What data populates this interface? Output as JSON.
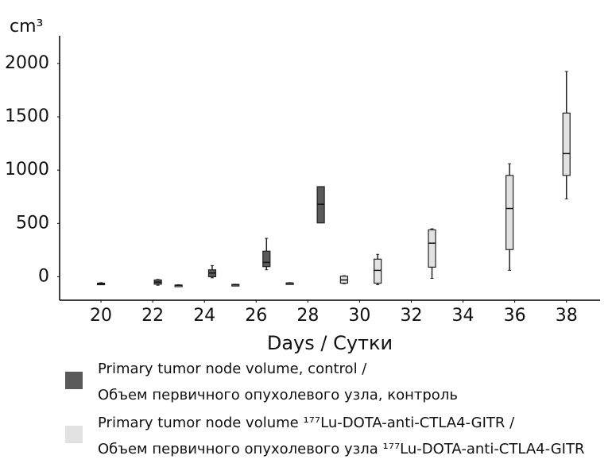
{
  "chart_data": {
    "type": "box",
    "y_label": "cm³",
    "x_label": "Days / Сутки",
    "xlim": [
      18.4,
      39.3
    ],
    "xticks": [
      20,
      22,
      24,
      26,
      28,
      30,
      32,
      34,
      36,
      38
    ],
    "ylim": [
      -220,
      2260
    ],
    "yticks": [
      0,
      500,
      1000,
      1500,
      2000
    ],
    "grid": false,
    "series": [
      {
        "name": [
          "Primary tumor node volume, control /",
          "Объем первичного опухолевого узла, контроль"
        ],
        "color": "#5a5a5a",
        "boxes": [
          {
            "x": 20,
            "low": -75,
            "q1": -70,
            "median": -65,
            "q3": -60,
            "high": -55
          },
          {
            "x": 22.2,
            "low": -80,
            "q1": -70,
            "median": -50,
            "q3": -30,
            "high": -25
          },
          {
            "x": 24.3,
            "low": -10,
            "q1": 0,
            "median": 35,
            "q3": 65,
            "high": 105
          },
          {
            "x": 26.4,
            "low": 65,
            "q1": 95,
            "median": 135,
            "q3": 240,
            "high": 360
          },
          {
            "x": 28.5,
            "low": 505,
            "q1": 505,
            "median": 680,
            "q3": 845,
            "high": 845
          }
        ]
      },
      {
        "name": [
          "Primary tumor node volume ¹⁷⁷Lu-DOTA-anti-CTLA4-GITR /",
          "Объем первичного опухолевого узла ¹⁷⁷Lu-DOTA-anti-CTLA4-GITR"
        ],
        "color": "#e2e2e2",
        "boxes": [
          {
            "x": 23,
            "low": -85,
            "q1": -82,
            "median": -80,
            "q3": -78,
            "high": -75
          },
          {
            "x": 25.2,
            "low": -80,
            "q1": -78,
            "median": -75,
            "q3": -72,
            "high": -70
          },
          {
            "x": 27.3,
            "low": -65,
            "q1": -62,
            "median": -60,
            "q3": -58,
            "high": -55
          },
          {
            "x": 29.4,
            "low": -65,
            "q1": -60,
            "median": -30,
            "q3": 5,
            "high": 10
          },
          {
            "x": 30.7,
            "low": -75,
            "q1": -60,
            "median": 60,
            "q3": 165,
            "high": 210
          },
          {
            "x": 32.8,
            "low": -15,
            "q1": 90,
            "median": 315,
            "q3": 440,
            "high": 450
          },
          {
            "x": 35.8,
            "low": 60,
            "q1": 255,
            "median": 640,
            "q3": 950,
            "high": 1060
          },
          {
            "x": 38,
            "low": 730,
            "q1": 950,
            "median": 1155,
            "q3": 1535,
            "high": 1925
          }
        ]
      }
    ]
  }
}
